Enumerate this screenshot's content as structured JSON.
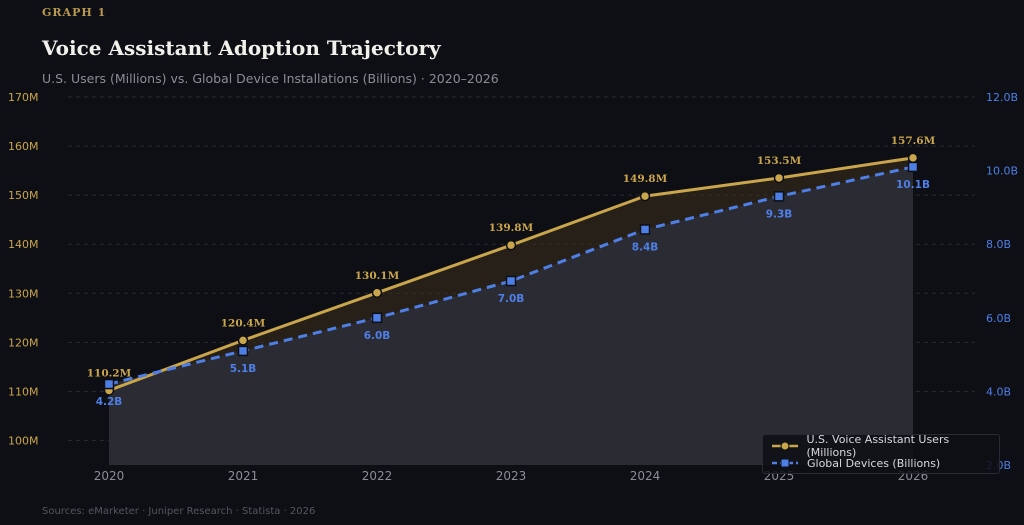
{
  "header": {
    "kicker": "GRAPH 1",
    "title": "Voice Assistant Adoption Trajectory",
    "subtitle": "U.S. Users (Millions) vs. Global Device Installations (Billions) · 2020–2026"
  },
  "footer": {
    "sources": "Sources: eMarketer · Juniper Research · Statista · 2026"
  },
  "colors": {
    "users": "#c9a54b",
    "devices": "#4e7fe6",
    "grid": "#2a2a33",
    "left_tick": "#c9a54b",
    "right_tick": "#4e7fe6",
    "x_tick": "#8c8c96"
  },
  "chart_data": {
    "type": "line",
    "x": [
      "2020",
      "2021",
      "2022",
      "2023",
      "2024",
      "2025",
      "2026"
    ],
    "series": [
      {
        "name": "U.S. Voice Assistant Users (Millions)",
        "axis": "left",
        "values": [
          110.2,
          120.4,
          130.1,
          139.8,
          149.8,
          153.5,
          157.6
        ],
        "labels": [
          "110.2M",
          "120.4M",
          "130.1M",
          "139.8M",
          "149.8M",
          "153.5M",
          "157.6M"
        ],
        "style": "solid",
        "marker": "circle",
        "fill": true
      },
      {
        "name": "Global Devices (Billions)",
        "axis": "right",
        "values": [
          4.2,
          5.1,
          6.0,
          7.0,
          8.4,
          9.3,
          10.1
        ],
        "labels": [
          "4.2B",
          "5.1B",
          "6.0B",
          "7.0B",
          "8.4B",
          "9.3B",
          "10.1B"
        ],
        "style": "dashed",
        "marker": "square",
        "fill": true
      }
    ],
    "y_left": {
      "lim": [
        95,
        170
      ],
      "ticks": [
        100,
        110,
        120,
        130,
        140,
        150,
        160,
        170
      ],
      "tick_labels": [
        "100M",
        "110M",
        "120M",
        "130M",
        "140M",
        "150M",
        "160M",
        "170M"
      ]
    },
    "y_right": {
      "lim": [
        2.0,
        12.0
      ],
      "ticks": [
        2,
        4,
        6,
        8,
        10,
        12
      ],
      "tick_labels": [
        "2.0B",
        "4.0B",
        "6.0B",
        "8.0B",
        "10.0B",
        "12.0B"
      ]
    },
    "grid": true,
    "legend_position": "bottom-right"
  }
}
